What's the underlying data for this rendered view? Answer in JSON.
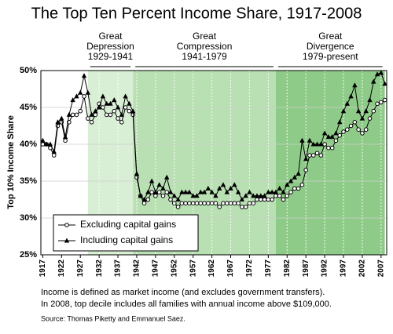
{
  "chart_data": {
    "type": "line",
    "title": "The Top Ten Percent Income Share, 1917-2008",
    "y_label": "Top 10% Income Share",
    "periods": [
      {
        "label": [
          "Great",
          "Depression",
          "1929-1941"
        ],
        "start": 1929,
        "end": 1941,
        "color": "#d9efd5"
      },
      {
        "label": [
          "Great",
          "Compression",
          "1941-1979"
        ],
        "start": 1941,
        "end": 1979,
        "color": "#b9e0b3"
      },
      {
        "label": [
          "Great",
          "Divergence",
          "1979-present"
        ],
        "start": 1979,
        "end": 2008,
        "color": "#8fcb88"
      }
    ],
    "x": [
      1917,
      1918,
      1919,
      1920,
      1921,
      1922,
      1923,
      1924,
      1925,
      1926,
      1927,
      1928,
      1929,
      1930,
      1931,
      1932,
      1933,
      1934,
      1935,
      1936,
      1937,
      1938,
      1939,
      1940,
      1941,
      1942,
      1943,
      1944,
      1945,
      1946,
      1947,
      1948,
      1949,
      1950,
      1951,
      1952,
      1953,
      1954,
      1955,
      1956,
      1957,
      1958,
      1959,
      1960,
      1961,
      1962,
      1963,
      1964,
      1965,
      1966,
      1967,
      1968,
      1969,
      1970,
      1971,
      1972,
      1973,
      1974,
      1975,
      1976,
      1977,
      1978,
      1979,
      1980,
      1981,
      1982,
      1983,
      1984,
      1985,
      1986,
      1987,
      1988,
      1989,
      1990,
      1991,
      1992,
      1993,
      1994,
      1995,
      1996,
      1997,
      1998,
      1999,
      2000,
      2001,
      2002,
      2003,
      2004,
      2005,
      2006,
      2007,
      2008
    ],
    "series": [
      {
        "name": "Excluding capital gains",
        "color": "#000000",
        "marker": "circle",
        "values": [
          40,
          40,
          39.5,
          38.5,
          42.5,
          43,
          40.5,
          43,
          44,
          44,
          44.5,
          46.5,
          43.5,
          43,
          44,
          45.5,
          45,
          44,
          44,
          44.5,
          43.5,
          43,
          45,
          44.5,
          44,
          35.5,
          33,
          32,
          32.5,
          33.5,
          33,
          33.5,
          33,
          33.5,
          32.5,
          32,
          31.5,
          32,
          32,
          32,
          32,
          32,
          32,
          32,
          32,
          32,
          32,
          31.5,
          32,
          32,
          32,
          32,
          32,
          31.5,
          31.5,
          32,
          32,
          32.5,
          32.5,
          32.5,
          32.5,
          32.5,
          33,
          33,
          32.5,
          33,
          33.5,
          34,
          34,
          34.5,
          36.5,
          38.5,
          38.5,
          38.8,
          38.5,
          40,
          39.5,
          39.5,
          40.5,
          41.2,
          41.7,
          42,
          42.5,
          43,
          42,
          41.5,
          42,
          43.5,
          44.5,
          45.5,
          45.7,
          46
        ]
      },
      {
        "name": "Including capital gains",
        "color": "#000000",
        "marker": "triangle",
        "values": [
          40.5,
          40,
          40,
          39,
          43,
          43.5,
          41,
          44,
          46,
          46.5,
          47,
          49.3,
          47,
          44,
          44.5,
          45,
          46.5,
          45.5,
          45.5,
          46,
          45,
          44,
          46.5,
          45.5,
          44.5,
          36,
          33,
          32.5,
          33.5,
          35,
          33.5,
          34.5,
          34,
          35.5,
          33.5,
          33,
          32.5,
          33.5,
          33.5,
          33.5,
          33,
          33,
          33.5,
          33.5,
          34,
          33.5,
          33,
          34,
          34.5,
          33.5,
          34,
          34.5,
          33.5,
          32.5,
          33,
          33.5,
          33,
          33,
          33,
          33,
          33.5,
          33.5,
          33.5,
          34,
          33.5,
          34.5,
          35,
          35.5,
          36,
          40.5,
          38,
          40.5,
          40,
          40,
          40,
          41.5,
          41,
          41,
          41.5,
          43,
          44.5,
          45.5,
          46.5,
          48,
          44.5,
          43.5,
          44.5,
          46,
          48.5,
          49.5,
          49.7,
          48.2
        ]
      }
    ],
    "xlim": [
      1916.5,
      2008.5
    ],
    "xticks": [
      1917,
      1922,
      1927,
      1932,
      1937,
      1942,
      1947,
      1952,
      1957,
      1962,
      1967,
      1972,
      1977,
      1982,
      1987,
      1992,
      1997,
      2002,
      2007
    ],
    "ylim": [
      25,
      50
    ],
    "yticks": [
      {
        "value": 25,
        "label": "25%"
      },
      {
        "value": 30,
        "label": "30%"
      },
      {
        "value": 35,
        "label": "35%"
      },
      {
        "value": 40,
        "label": "40%"
      },
      {
        "value": 45,
        "label": "45%"
      },
      {
        "value": 50,
        "label": "50%"
      }
    ],
    "grid": true,
    "legend": "lower left",
    "notes": [
      "Income is defined as market income (and excludes government transfers).",
      "In 2008, top decile includes all families with annual income above $109,000."
    ],
    "source": "Source: Thomas Piketty and Emmanuel Saez."
  }
}
